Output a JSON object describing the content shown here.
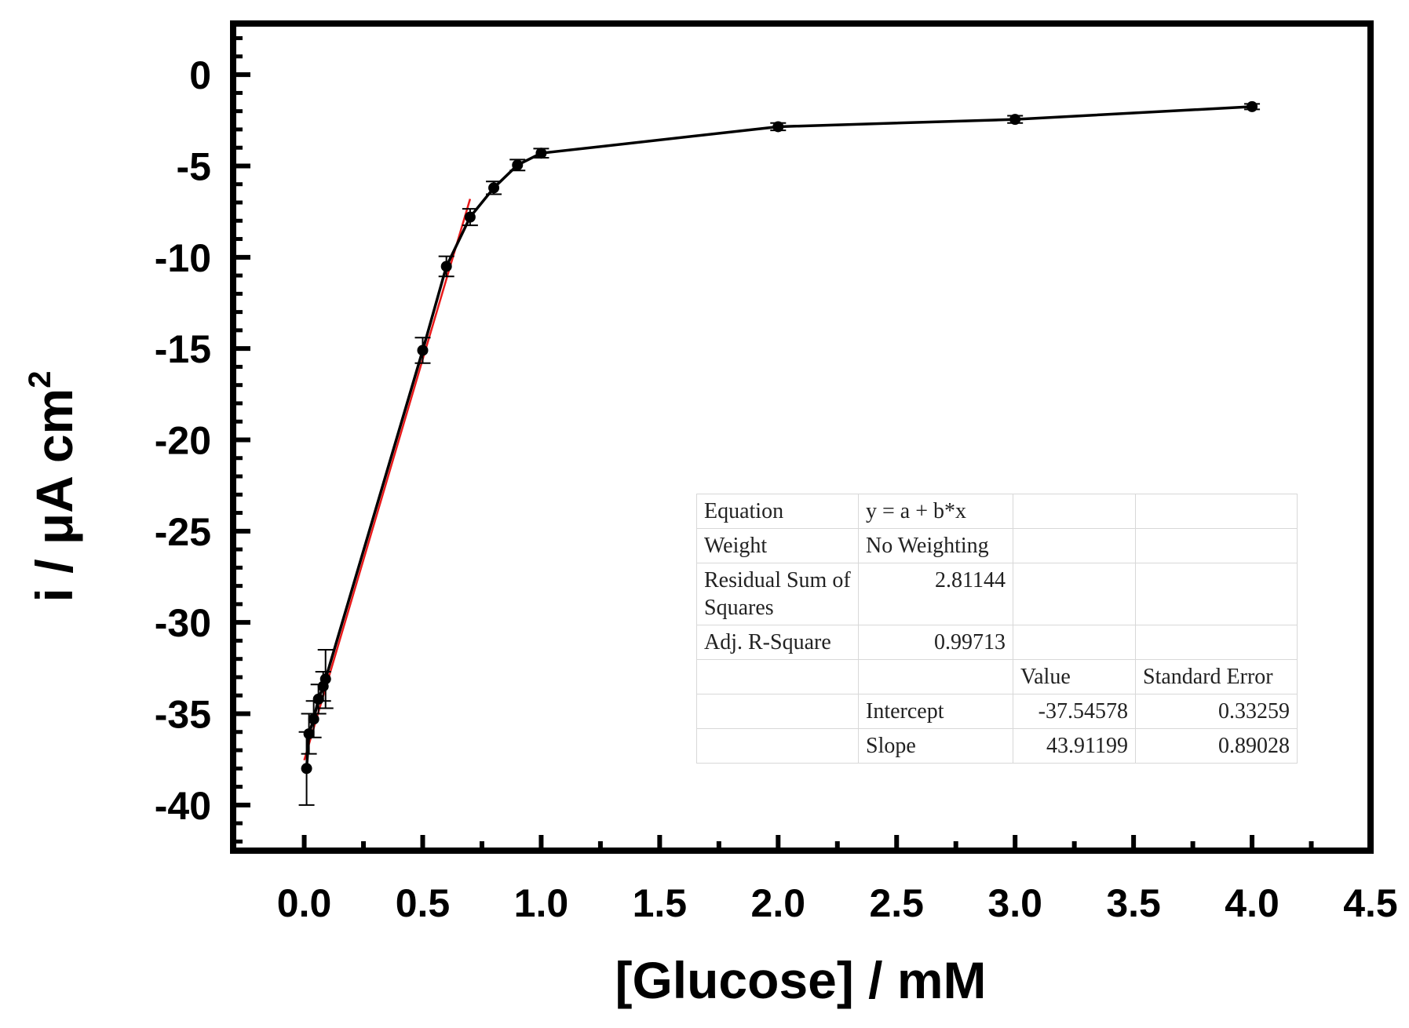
{
  "chart_data": {
    "type": "line",
    "title": "",
    "xlabel": "[Glucose] / mM",
    "ylabel_main": "i / μA cm",
    "ylabel_superscript": "2",
    "xlim": [
      -0.3,
      4.5
    ],
    "ylim": [
      -42.5,
      2.8
    ],
    "x_ticks": [
      "0.0",
      "0.5",
      "1.0",
      "1.5",
      "2.0",
      "2.5",
      "3.0",
      "3.5",
      "4.0",
      "4.5"
    ],
    "y_ticks": [
      "0",
      "-5",
      "-10",
      "-15",
      "-20",
      "-25",
      "-30",
      "-35",
      "-40"
    ],
    "grid": false,
    "series": [
      {
        "color": "#000000",
        "marker": "circle",
        "x": [
          0.01,
          0.02,
          0.04,
          0.06,
          0.08,
          0.09,
          0.5,
          0.6,
          0.7,
          0.8,
          0.9,
          1.0,
          2.0,
          3.0,
          4.0
        ],
        "y": [
          -38.0,
          -36.1,
          -35.3,
          -34.2,
          -33.5,
          -33.1,
          -15.1,
          -10.5,
          -7.8,
          -6.2,
          -4.95,
          -4.3,
          -2.85,
          -2.45,
          -1.75
        ],
        "error": [
          2.0,
          1.1,
          1.0,
          0.8,
          0.8,
          1.6,
          0.7,
          0.55,
          0.45,
          0.35,
          0.3,
          0.25,
          0.2,
          0.2,
          0.15
        ]
      }
    ],
    "fit_line": {
      "color": "#e8191a",
      "intercept": -37.54578,
      "slope": 43.91199,
      "x_range": [
        0.0,
        0.7
      ]
    },
    "fit_table": {
      "equation_label": "Equation",
      "equation_value": "y = a + b*x",
      "weight_label": "Weight",
      "weight_value": "No Weighting",
      "rss_label": "Residual Sum of Squares",
      "rss_value": "2.81144",
      "adj_r2_label": "Adj. R-Square",
      "adj_r2_value": "0.99713",
      "value_header": "Value",
      "stderr_header": "Standard Error",
      "intercept_label": "Intercept",
      "intercept_value": "-37.54578",
      "intercept_error": "0.33259",
      "slope_label": "Slope",
      "slope_value": "43.91199",
      "slope_error": "0.89028"
    }
  }
}
